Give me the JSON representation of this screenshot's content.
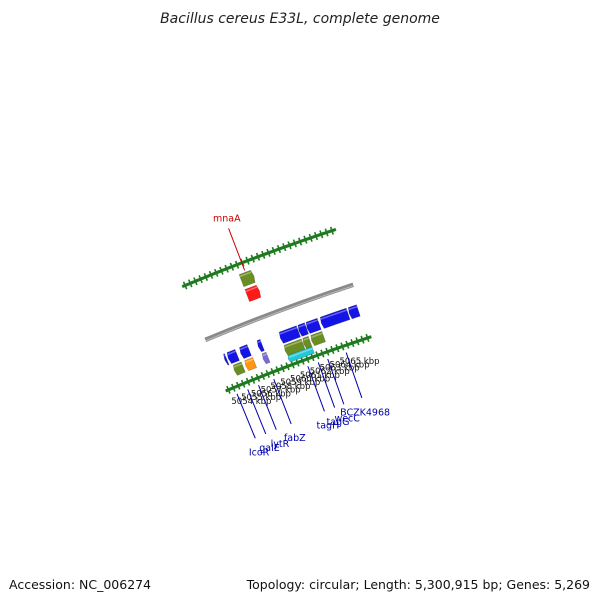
{
  "title": "Bacillus cereus E33L, complete genome",
  "footer": {
    "accession": "Accession: NC_006274",
    "summary": "Topology: circular; Length: 5,300,915 bp; Genes: 5,269"
  },
  "colors": {
    "backbone": "#8a8a8a",
    "cds": "#1414e6",
    "gene": "#6b8e23",
    "rna": "#ff1a1a",
    "misc": "#22c8d6",
    "trna": "#ff9510",
    "pseudo": "#7a6ad6",
    "label_forward": "#cc0000",
    "label_reverse": "#0000aa",
    "ticks": "#1f7a1f"
  },
  "kbp_labels": [
    {
      "kbp": 5054,
      "text": "5054 kbp"
    },
    {
      "kbp": 5055,
      "text": "5055 kbp"
    },
    {
      "kbp": 5056,
      "text": "5056 kbp"
    },
    {
      "kbp": 5057,
      "text": "5057 kbp"
    },
    {
      "kbp": 5058,
      "text": "5058 kbp"
    },
    {
      "kbp": 5059,
      "text": "5059 kbp"
    },
    {
      "kbp": 5060,
      "text": "5060 kbp"
    },
    {
      "kbp": 5061,
      "text": "5061 kbp"
    },
    {
      "kbp": 5062,
      "text": "5062 kbp"
    },
    {
      "kbp": 5063,
      "text": "5063 kbp"
    },
    {
      "kbp": 5064,
      "text": "5064 kbp"
    },
    {
      "kbp": 5065,
      "text": "5065 kbp"
    }
  ],
  "features": [
    {
      "name": "",
      "strand": "reverse",
      "kind": "cds",
      "start": 5053.25,
      "end": 5053.45
    },
    {
      "name": "",
      "strand": "reverse",
      "kind": "cds",
      "start": 5053.6,
      "end": 5054.5
    },
    {
      "name": "",
      "strand": "reverse",
      "kind": "gene",
      "start": 5053.7,
      "end": 5054.6
    },
    {
      "name": "",
      "strand": "reverse",
      "kind": "cds",
      "start": 5054.85,
      "end": 5055.7
    },
    {
      "name": "",
      "strand": "reverse",
      "kind": "trna",
      "start": 5054.85,
      "end": 5055.75
    },
    {
      "name": "",
      "strand": "reverse",
      "kind": "cds",
      "start": 5056.6,
      "end": 5057.0
    },
    {
      "name": "",
      "strand": "reverse",
      "kind": "pseudo",
      "start": 5056.6,
      "end": 5057.1
    },
    {
      "name": "",
      "strand": "forward",
      "kind": "gene",
      "start": 5057.35,
      "end": 5058.55
    },
    {
      "name": "",
      "strand": "forward",
      "kind": "rna",
      "start": 5057.35,
      "end": 5058.55
    },
    {
      "name": "",
      "strand": "reverse",
      "kind": "cds",
      "start": 5058.8,
      "end": 5060.6
    },
    {
      "name": "",
      "strand": "reverse",
      "kind": "gene",
      "start": 5058.8,
      "end": 5060.6
    },
    {
      "name": "",
      "strand": "reverse",
      "kind": "misc",
      "start": 5058.8,
      "end": 5061.3
    },
    {
      "name": "",
      "strand": "reverse",
      "kind": "gene",
      "start": 5060.65,
      "end": 5061.3
    },
    {
      "name": "",
      "strand": "reverse",
      "kind": "cds",
      "start": 5060.65,
      "end": 5061.4
    },
    {
      "name": "",
      "strand": "reverse",
      "kind": "cds",
      "start": 5061.45,
      "end": 5062.65
    },
    {
      "name": "",
      "strand": "reverse",
      "kind": "gene",
      "start": 5061.45,
      "end": 5062.65
    },
    {
      "name": "",
      "strand": "reverse",
      "kind": "cds",
      "start": 5062.85,
      "end": 5065.5
    },
    {
      "name": "",
      "strand": "reverse",
      "kind": "cds",
      "start": 5065.6,
      "end": 5066.5
    }
  ],
  "gene_labels": [
    {
      "name": "IcoR",
      "strand": "reverse",
      "kbp": 5053.1,
      "color": "label_reverse"
    },
    {
      "name": "galE",
      "strand": "reverse",
      "kbp": 5054.2,
      "color": "label_reverse"
    },
    {
      "name": "lytR",
      "strand": "reverse",
      "kbp": 5055.3,
      "color": "label_reverse"
    },
    {
      "name": "fabZ",
      "strand": "reverse",
      "kbp": 5056.85,
      "color": "label_reverse"
    },
    {
      "name": "mnaA",
      "strand": "forward",
      "kbp": 5057.95,
      "color": "label_forward"
    },
    {
      "name": "tagH",
      "strand": "reverse",
      "kbp": 5060.3,
      "color": "label_reverse"
    },
    {
      "name": "tagG",
      "strand": "reverse",
      "kbp": 5061.35,
      "color": "label_reverse"
    },
    {
      "name": "wecC",
      "strand": "reverse",
      "kbp": 5062.3,
      "color": "label_reverse"
    },
    {
      "name": "BCZK4968",
      "strand": "reverse",
      "kbp": 5064.15,
      "color": "label_reverse"
    }
  ]
}
